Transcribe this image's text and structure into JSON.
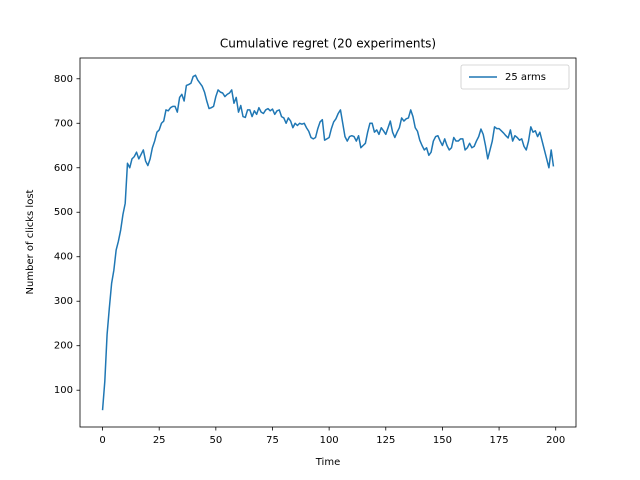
{
  "chart_data": {
    "type": "line",
    "title": "Cumulative regret (20 experiments)",
    "xlabel": "Time",
    "ylabel": "Number of clicks lost",
    "x": [
      0,
      1,
      2,
      3,
      4,
      5,
      6,
      7,
      8,
      9,
      10,
      11,
      12,
      13,
      14,
      15,
      16,
      17,
      18,
      19,
      20,
      21,
      22,
      23,
      24,
      25,
      26,
      27,
      28,
      29,
      30,
      31,
      32,
      33,
      34,
      35,
      36,
      37,
      38,
      39,
      40,
      41,
      42,
      43,
      44,
      45,
      46,
      47,
      48,
      49,
      50,
      51,
      52,
      53,
      54,
      55,
      56,
      57,
      58,
      59,
      60,
      61,
      62,
      63,
      64,
      65,
      66,
      67,
      68,
      69,
      70,
      71,
      72,
      73,
      74,
      75,
      76,
      77,
      78,
      79,
      80,
      81,
      82,
      83,
      84,
      85,
      86,
      87,
      88,
      89,
      90,
      91,
      92,
      93,
      94,
      95,
      96,
      97,
      98,
      99,
      100,
      101,
      102,
      103,
      104,
      105,
      106,
      107,
      108,
      109,
      110,
      111,
      112,
      113,
      114,
      115,
      116,
      117,
      118,
      119,
      120,
      121,
      122,
      123,
      124,
      125,
      126,
      127,
      128,
      129,
      130,
      131,
      132,
      133,
      134,
      135,
      136,
      137,
      138,
      139,
      140,
      141,
      142,
      143,
      144,
      145,
      146,
      147,
      148,
      149,
      150,
      151,
      152,
      153,
      154,
      155,
      156,
      157,
      158,
      159,
      160,
      161,
      162,
      163,
      164,
      165,
      166,
      167,
      168,
      169,
      170,
      171,
      172,
      173,
      174,
      175,
      176,
      177,
      178,
      179,
      180,
      181,
      182,
      183,
      184,
      185,
      186,
      187,
      188,
      189,
      190,
      191,
      192,
      193,
      194,
      195,
      196,
      197,
      198,
      199
    ],
    "series": [
      {
        "name": "25 arms",
        "color": "#1f77b4",
        "values": [
          55,
          120,
          225,
          285,
          340,
          370,
          415,
          435,
          460,
          495,
          520,
          610,
          600,
          620,
          625,
          635,
          620,
          630,
          640,
          615,
          605,
          620,
          645,
          660,
          680,
          685,
          700,
          705,
          730,
          728,
          735,
          738,
          738,
          725,
          758,
          765,
          750,
          785,
          787,
          790,
          805,
          808,
          797,
          790,
          783,
          770,
          750,
          733,
          735,
          738,
          760,
          775,
          770,
          768,
          760,
          765,
          768,
          775,
          745,
          758,
          725,
          740,
          715,
          713,
          730,
          730,
          715,
          728,
          720,
          735,
          725,
          722,
          730,
          733,
          728,
          732,
          720,
          728,
          730,
          715,
          712,
          700,
          712,
          705,
          690,
          700,
          695,
          700,
          698,
          700,
          690,
          682,
          668,
          665,
          668,
          688,
          703,
          708,
          662,
          665,
          668,
          688,
          703,
          710,
          722,
          730,
          700,
          670,
          660,
          670,
          672,
          670,
          660,
          672,
          645,
          650,
          655,
          680,
          700,
          700,
          680,
          685,
          675,
          690,
          683,
          675,
          690,
          705,
          680,
          668,
          680,
          690,
          712,
          705,
          710,
          712,
          730,
          715,
          690,
          682,
          662,
          650,
          640,
          645,
          628,
          635,
          660,
          670,
          672,
          660,
          650,
          665,
          650,
          640,
          645,
          668,
          660,
          660,
          665,
          665,
          640,
          645,
          655,
          645,
          648,
          660,
          670,
          687,
          675,
          650,
          620,
          640,
          660,
          692,
          688,
          688,
          683,
          678,
          672,
          667,
          685,
          660,
          672,
          668,
          662,
          665,
          648,
          640,
          660,
          692,
          680,
          683,
          670,
          680,
          660,
          640,
          620,
          600,
          640,
          603
        ]
      }
    ],
    "xlim": [
      -9.95,
      208.95
    ],
    "ylim": [
      17.3,
      846.7
    ],
    "xticks": [
      0,
      25,
      50,
      75,
      100,
      125,
      150,
      175,
      200
    ],
    "yticks": [
      100,
      200,
      300,
      400,
      500,
      600,
      700,
      800
    ],
    "legend": "upper right",
    "grid": false
  }
}
